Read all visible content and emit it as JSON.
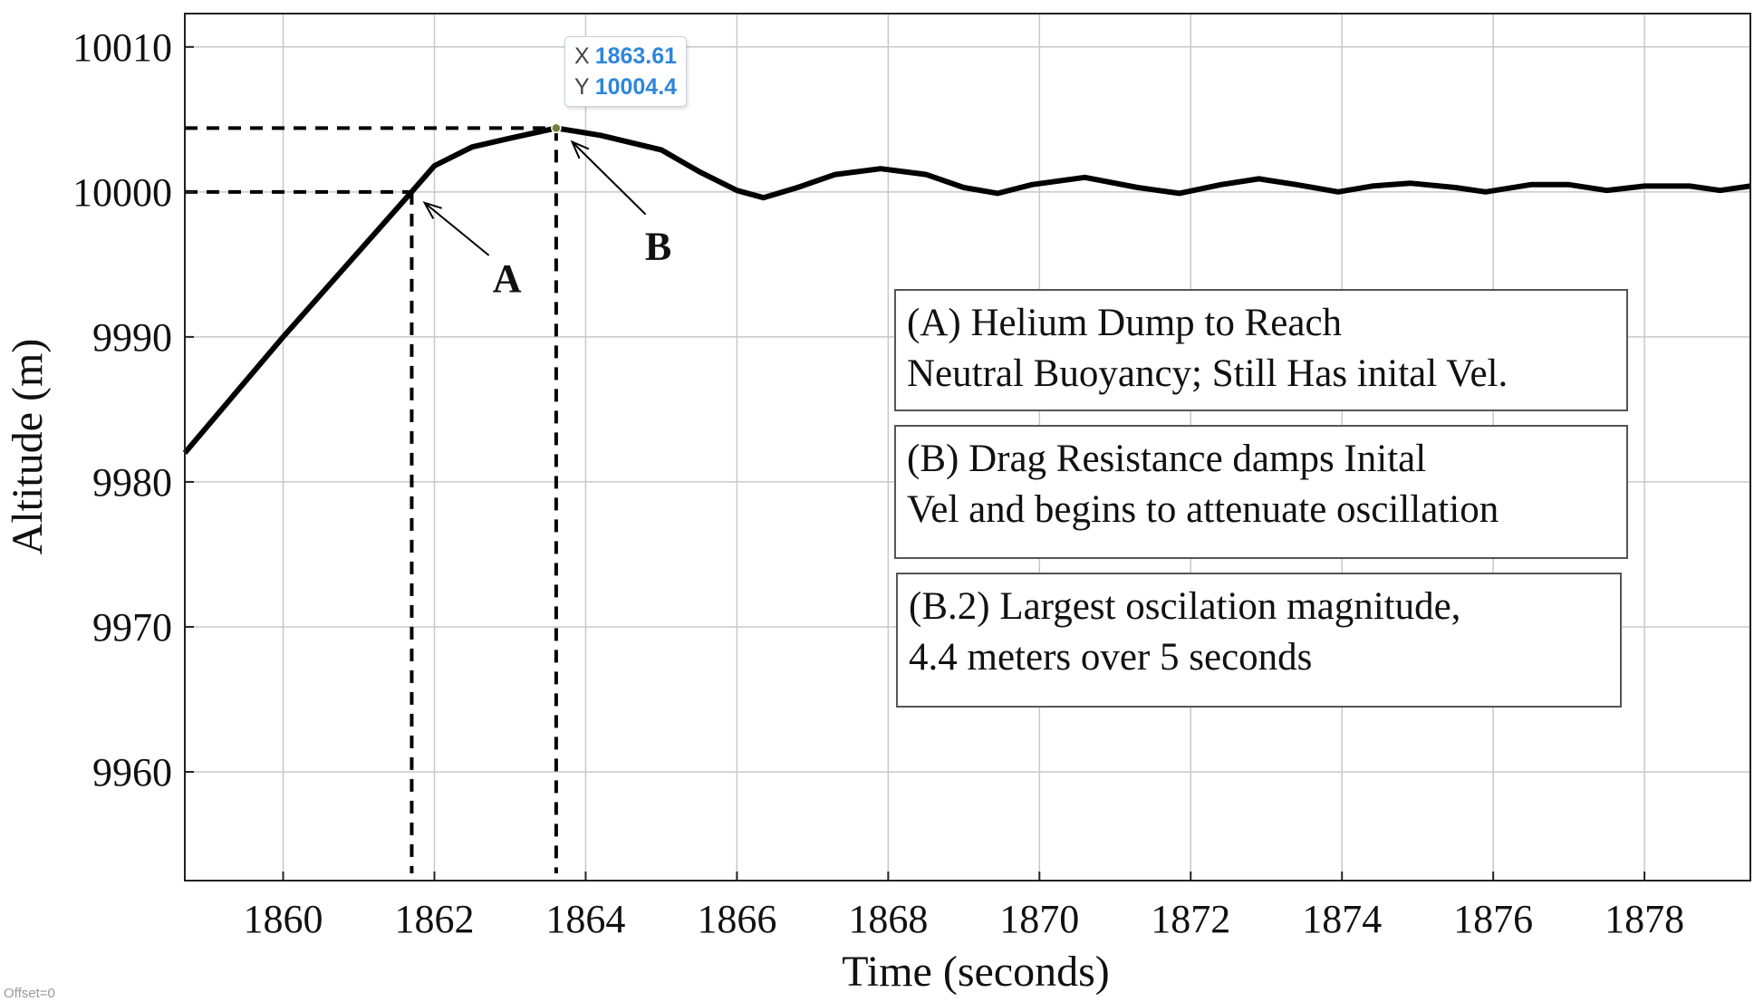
{
  "chart_data": {
    "type": "line",
    "xlabel": "Time (seconds)",
    "ylabel": "Altitude (m)",
    "xlim": [
      1858.7,
      1879.4
    ],
    "ylim": [
      9952.5,
      10012.3
    ],
    "xticks": [
      1860,
      1862,
      1864,
      1866,
      1868,
      1870,
      1872,
      1874,
      1876,
      1878
    ],
    "yticks": [
      9960,
      9970,
      9980,
      9990,
      10000,
      10010
    ],
    "grid": true,
    "series": [
      {
        "color": "#000000",
        "x": [
          1858.7,
          1860,
          1861.7,
          1862.0,
          1862.5,
          1863.0,
          1863.61,
          1864.2,
          1865.0,
          1865.5,
          1866.0,
          1866.35,
          1866.8,
          1867.3,
          1867.9,
          1868.5,
          1869.0,
          1869.45,
          1869.9,
          1870.6,
          1871.3,
          1871.85,
          1872.4,
          1872.9,
          1873.4,
          1873.95,
          1874.4,
          1874.9,
          1875.5,
          1875.9,
          1876.5,
          1877.0,
          1877.5,
          1878.0,
          1878.6,
          1879.0,
          1879.4
        ],
        "y": [
          9982.0,
          9990.0,
          10000.0,
          10001.8,
          10003.1,
          10003.7,
          10004.4,
          10003.9,
          10002.9,
          10001.4,
          10000.1,
          9999.6,
          10000.3,
          10001.2,
          10001.6,
          10001.2,
          10000.3,
          9999.9,
          10000.5,
          10001.0,
          10000.3,
          9999.9,
          10000.5,
          10000.9,
          10000.5,
          10000.0,
          10000.4,
          10000.6,
          10000.3,
          10000.0,
          10000.5,
          10000.5,
          10000.1,
          10000.4,
          10000.4,
          10000.1,
          10000.4
        ]
      }
    ],
    "guide_points": [
      {
        "x": 1861.7,
        "y": 10000.0
      },
      {
        "x": 1863.61,
        "y": 10004.4
      }
    ],
    "annotations": [
      {
        "label": "A",
        "x": 1861.75,
        "y": 10000.0
      },
      {
        "label": "B",
        "x": 1863.63,
        "y": 10004.2
      }
    ],
    "datatip": {
      "x_key": "X",
      "x_value": "1863.61",
      "y_key": "Y",
      "y_value": "10004.4"
    },
    "notes": [
      {
        "line1": "(A) Helium Dump to Reach",
        "line2": "Neutral Buoyancy; Still Has inital Vel."
      },
      {
        "line1": "(B) Drag Resistance damps Inital",
        "line2": "Vel and begins to attenuate oscillation"
      },
      {
        "line1": "(B.2) Largest oscilation magnitude,",
        "line2": "4.4 meters over 5 seconds"
      }
    ]
  },
  "offset_text": "Offset=0",
  "colors": {
    "line": "#000000",
    "grid": "#c8c8c8",
    "datatip_value": "#2e86de"
  }
}
